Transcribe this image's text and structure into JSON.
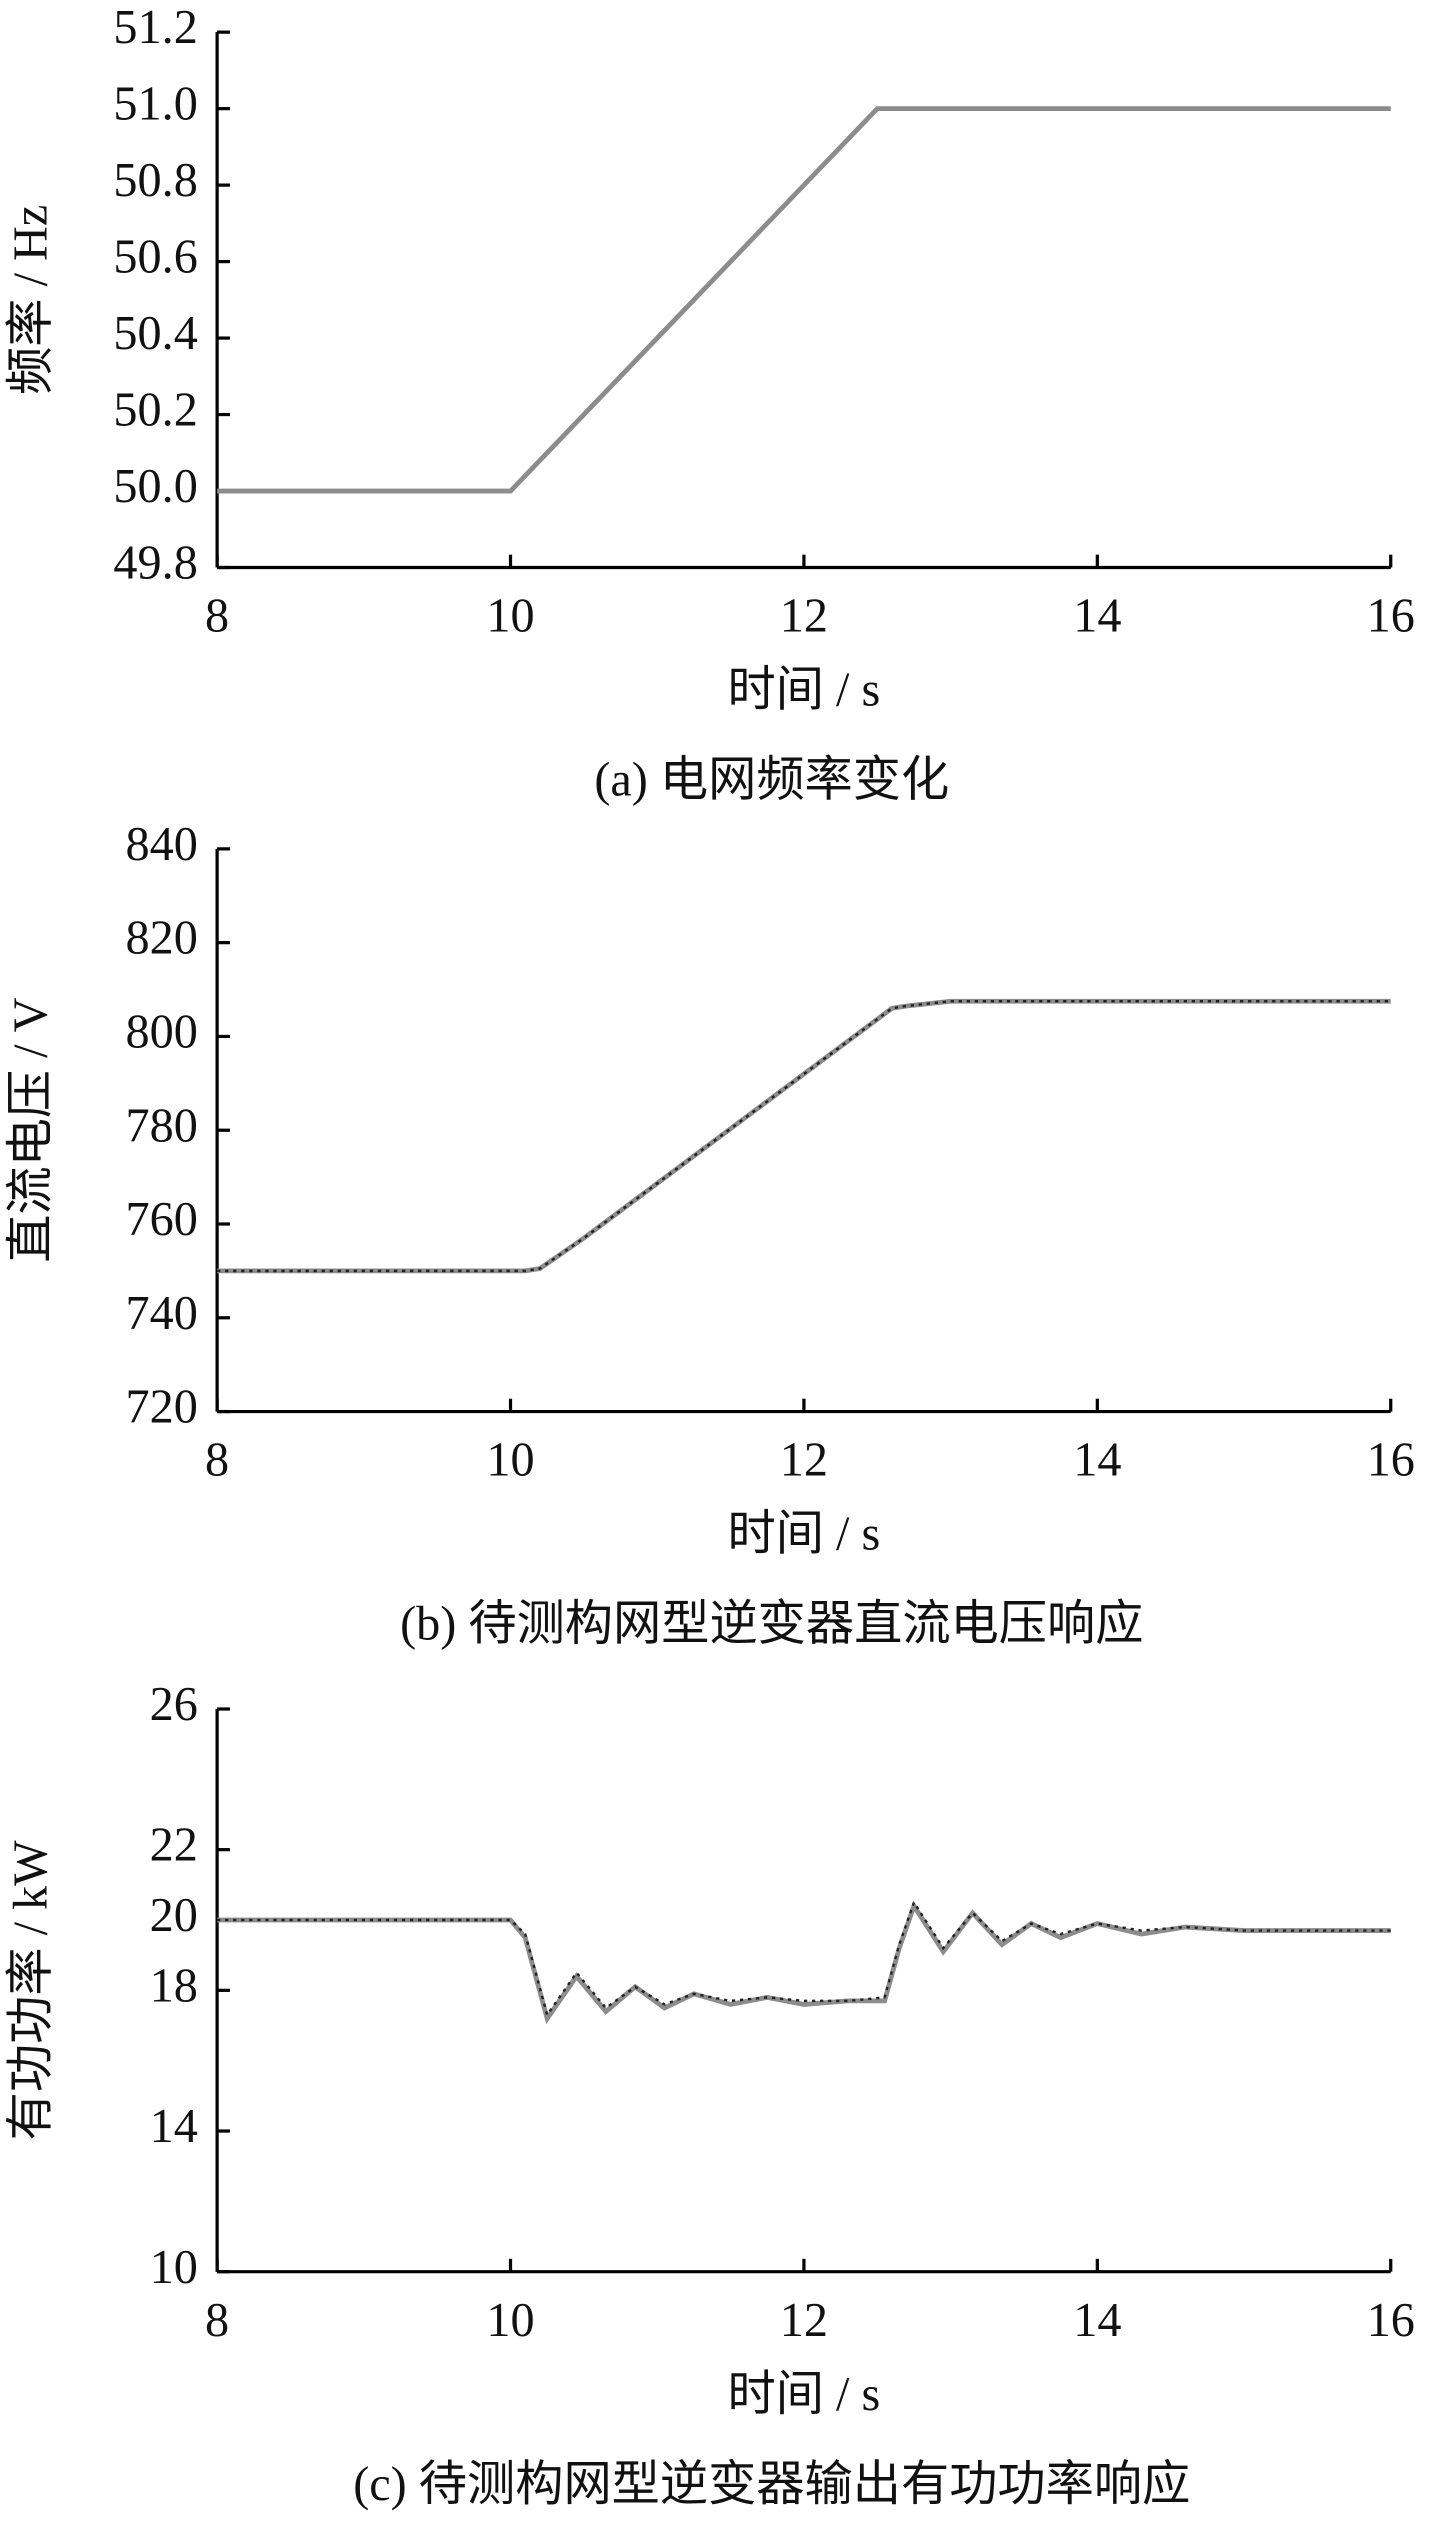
{
  "chart_data": [
    {
      "type": "line",
      "xlabel": "时间 / s",
      "ylabel": "频率 / Hz",
      "caption": "(a)  电网频率变化",
      "xlim": [
        8,
        16
      ],
      "xticks": [
        8,
        10,
        12,
        14,
        16
      ],
      "ylim": [
        49.8,
        51.2
      ],
      "yticks": [
        49.8,
        {
          "value": 50,
          "label": "50.0"
        },
        50.2,
        50.4,
        50.6,
        50.8,
        {
          "value": 51,
          "label": "51.0"
        },
        51.2
      ],
      "series": [
        {
          "color": "#8c8c8c",
          "x": [
            8,
            10,
            12.5,
            16
          ],
          "values": [
            50,
            50,
            51,
            51
          ]
        }
      ]
    },
    {
      "type": "line",
      "xlabel": "时间 / s",
      "ylabel": "直流电压 / V",
      "caption": "(b)  待测构网型逆变器直流电压响应",
      "xlim": [
        8,
        16
      ],
      "xticks": [
        8,
        10,
        12,
        14,
        16
      ],
      "ylim": [
        720,
        840
      ],
      "yticks": [
        720,
        740,
        760,
        780,
        800,
        820,
        840
      ],
      "series": [
        {
          "color": "#8c8c8c",
          "x": [
            8,
            10.1,
            10.2,
            10.5,
            12.6,
            12.7,
            13,
            16
          ],
          "values": [
            750,
            750,
            750.5,
            757,
            806,
            806.5,
            807.5,
            807.5
          ]
        },
        {
          "color": "#222222",
          "dash": true,
          "x": [
            8,
            10.1,
            10.2,
            10.5,
            12.6,
            12.7,
            13,
            16
          ],
          "values": [
            750,
            750,
            750.5,
            757,
            806,
            806.5,
            807.5,
            807.5
          ]
        }
      ]
    },
    {
      "type": "line",
      "xlabel": "时间 / s",
      "ylabel": "有功功率 / kW",
      "caption": "(c)  待测构网型逆变器输出有功功率响应",
      "xlim": [
        8,
        16
      ],
      "xticks": [
        8,
        10,
        12,
        14,
        16
      ],
      "ylim": [
        10,
        26
      ],
      "yticks": [
        10,
        14,
        18,
        20,
        22,
        26
      ],
      "series": [
        {
          "color": "#8c8c8c",
          "x": [
            8,
            10,
            10.1,
            10.25,
            10.45,
            10.65,
            10.85,
            11.05,
            11.25,
            11.5,
            11.75,
            12,
            12.3,
            12.55,
            12.65,
            12.75,
            12.95,
            13.15,
            13.35,
            13.55,
            13.75,
            14,
            14.3,
            14.6,
            15,
            16
          ],
          "values": [
            20,
            20,
            19.5,
            17.2,
            18.4,
            17.4,
            18.1,
            17.5,
            17.9,
            17.6,
            17.8,
            17.6,
            17.7,
            17.7,
            19.2,
            20.4,
            19.1,
            20.2,
            19.3,
            19.9,
            19.5,
            19.9,
            19.6,
            19.8,
            19.7,
            19.7
          ]
        },
        {
          "color": "#222222",
          "dash": true,
          "x": [
            8,
            10,
            10.1,
            10.25,
            10.45,
            10.65,
            10.85,
            11.05,
            11.25,
            11.5,
            11.75,
            12,
            12.3,
            12.55,
            12.65,
            12.75,
            12.95,
            13.15,
            13.35,
            13.55,
            13.75,
            14,
            14.3,
            14.6,
            15,
            16
          ],
          "values": [
            20,
            20,
            19.6,
            17.3,
            18.5,
            17.5,
            18.1,
            17.6,
            17.9,
            17.7,
            17.8,
            17.7,
            17.7,
            17.8,
            19.3,
            20.5,
            19.2,
            20.2,
            19.4,
            19.9,
            19.6,
            19.9,
            19.7,
            19.8,
            19.7,
            19.7
          ]
        }
      ]
    }
  ]
}
